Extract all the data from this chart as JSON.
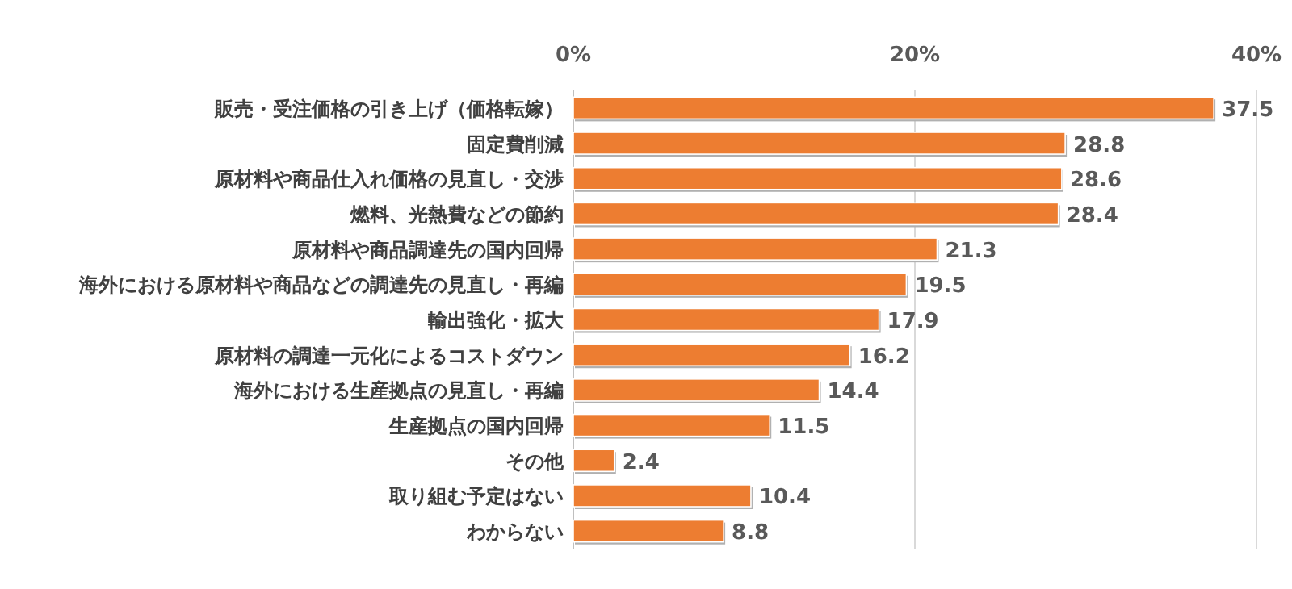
{
  "chart_data": {
    "type": "bar",
    "orientation": "horizontal",
    "categories": [
      "販売・受注価格の引き上げ（価格転嫁）",
      "固定費削減",
      "原材料や商品仕入れ価格の見直し・交渉",
      "燃料、光熱費などの節約",
      "原材料や商品調達先の国内回帰",
      "海外における原材料や商品などの調達先の見直し・再編",
      "輸出強化・拡大",
      "原材料の調達一元化によるコストダウン",
      "海外における生産拠点の見直し・再編",
      "生産拠点の国内回帰",
      "その他",
      "取り組む予定はない",
      "わからない"
    ],
    "values": [
      37.5,
      28.8,
      28.6,
      28.4,
      21.3,
      19.5,
      17.9,
      16.2,
      14.4,
      11.5,
      2.4,
      10.4,
      8.8
    ],
    "color": "#ed7d31",
    "xlim": [
      0,
      40
    ],
    "xticks": [
      {
        "value": 0,
        "label": "0%"
      },
      {
        "value": 20,
        "label": "20%"
      },
      {
        "value": 40,
        "label": "40%"
      }
    ],
    "grid": "x",
    "data_labels": true
  }
}
